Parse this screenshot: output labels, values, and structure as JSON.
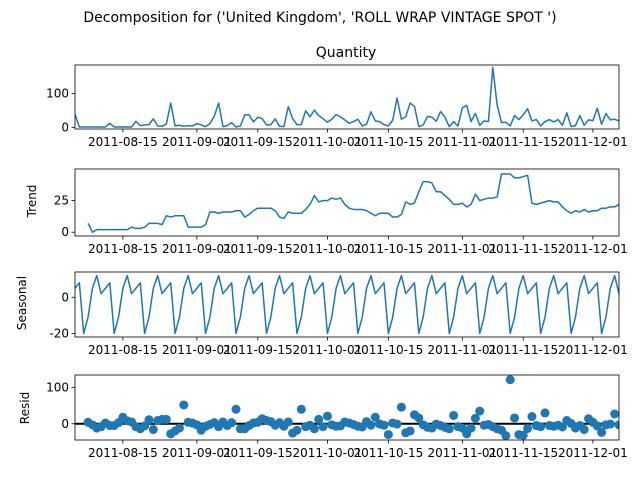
{
  "figure": {
    "suptitle": "Decomposition for ('United Kingdom', 'ROLL WRAP VINTAGE SPOT ')"
  },
  "colors": {
    "line": "#1f77b4",
    "marker": "#1f77b4",
    "zero_line": "#000000"
  },
  "chart_data": [
    {
      "type": "line",
      "title": "Quantity",
      "ylabel": "",
      "x_range": [
        "2011-08-04",
        "2011-12-07"
      ],
      "ylim": [
        -5,
        185
      ],
      "yticks": [
        0,
        100
      ],
      "xtick_labels": [
        "2011-08-15",
        "2011-09-01",
        "2011-09-15",
        "2011-10-01",
        "2011-10-15",
        "2011-11-01",
        "2011-11-15",
        "2011-12-01"
      ],
      "start_date": "2011-08-04",
      "series": [
        {
          "values": [
            38,
            1,
            1,
            1,
            1,
            1,
            1,
            1,
            12,
            1,
            1,
            1,
            1,
            1,
            18,
            5,
            7,
            8,
            25,
            4,
            3,
            10,
            72,
            4,
            6,
            3,
            5,
            4,
            11,
            7,
            2,
            11,
            33,
            72,
            2,
            5,
            14,
            1,
            4,
            37,
            37,
            16,
            30,
            26,
            7,
            8,
            25,
            3,
            2,
            61,
            26,
            8,
            8,
            49,
            31,
            51,
            35,
            26,
            15,
            24,
            38,
            31,
            22,
            12,
            17,
            24,
            4,
            9,
            46,
            19,
            17,
            8,
            4,
            21,
            87,
            24,
            31,
            72,
            62,
            2,
            7,
            32,
            30,
            18,
            47,
            30,
            2,
            17,
            4,
            58,
            65,
            17,
            41,
            6,
            19,
            17,
            178,
            66,
            14,
            15,
            4,
            35,
            23,
            37,
            55,
            19,
            23,
            4,
            17,
            23,
            16,
            23,
            6,
            43,
            2,
            5,
            35,
            6,
            22,
            20,
            57,
            9,
            41,
            22,
            24,
            19,
            54
          ]
        }
      ]
    },
    {
      "type": "line",
      "title": "",
      "ylabel": "Trend",
      "x_range": [
        "2011-08-04",
        "2011-12-07"
      ],
      "ylim": [
        -3,
        50
      ],
      "yticks": [
        0,
        25
      ],
      "xtick_labels": [
        "2011-08-15",
        "2011-09-01",
        "2011-09-15",
        "2011-10-01",
        "2011-10-15",
        "2011-11-01",
        "2011-11-15",
        "2011-12-01"
      ],
      "start_date": "2011-08-04",
      "first_index": 3,
      "series": [
        {
          "values": [
            7,
            0,
            2,
            2,
            2,
            2,
            2,
            2,
            2,
            2,
            4,
            3,
            3,
            4,
            7,
            7,
            7,
            6,
            13,
            12,
            13,
            13,
            13,
            4,
            4,
            4,
            4,
            6,
            16,
            16,
            15,
            16,
            16,
            16,
            17,
            17,
            12,
            14,
            17,
            19,
            19,
            19,
            19,
            17,
            12,
            11,
            16,
            15,
            15,
            15,
            18,
            22,
            29,
            24,
            25,
            25,
            27,
            26,
            27,
            22,
            19,
            18,
            18,
            18,
            17,
            15,
            13,
            15,
            15,
            15,
            12,
            12,
            14,
            24,
            22,
            23,
            32,
            40,
            40,
            39,
            32,
            32,
            29,
            26,
            22,
            22,
            23,
            20,
            22,
            30,
            25,
            26,
            27,
            27,
            28,
            46,
            46,
            46,
            43,
            43,
            44,
            45,
            23,
            22,
            23,
            24,
            25,
            24,
            24,
            20,
            17,
            15,
            17,
            16,
            18,
            16,
            17,
            17,
            19,
            19,
            20,
            20,
            22,
            22,
            22,
            21
          ]
        }
      ]
    },
    {
      "type": "line",
      "title": "",
      "ylabel": "Seasonal",
      "x_range": [
        "2011-08-04",
        "2011-12-07"
      ],
      "ylim": [
        -22,
        14
      ],
      "yticks": [
        -20,
        0
      ],
      "xtick_labels": [
        "2011-08-15",
        "2011-09-01",
        "2011-09-15",
        "2011-10-01",
        "2011-10-15",
        "2011-11-01",
        "2011-11-15",
        "2011-12-01"
      ],
      "start_date": "2011-08-04",
      "period": 7,
      "pattern": [
        5,
        8,
        -20,
        -11,
        5,
        12,
        2
      ],
      "n": 127
    },
    {
      "type": "scatter",
      "title": "",
      "ylabel": "Resid",
      "x_range": [
        "2011-08-04",
        "2011-12-07"
      ],
      "ylim": [
        -45,
        135
      ],
      "yticks": [
        0,
        100
      ],
      "xtick_labels": [
        "2011-08-15",
        "2011-09-01",
        "2011-09-15",
        "2011-10-01",
        "2011-10-15",
        "2011-11-01",
        "2011-11-15",
        "2011-12-01"
      ],
      "start_date": "2011-08-04",
      "first_index": 3,
      "series": [
        {
          "values": [
            4,
            -3,
            -12,
            -8,
            2,
            -5,
            -5,
            3,
            18,
            8,
            5,
            -8,
            -14,
            -6,
            11,
            -16,
            9,
            12,
            12,
            -28,
            -20,
            -12,
            52,
            4,
            2,
            -3,
            -18,
            -7,
            -2,
            3,
            -8,
            5,
            -5,
            3,
            40,
            -14,
            -14,
            -5,
            2,
            4,
            14,
            9,
            6,
            -4,
            3,
            -7,
            5,
            -26,
            -18,
            40,
            -8,
            -4,
            -14,
            12,
            -8,
            21,
            -3,
            -7,
            -6,
            5,
            2,
            -2,
            -7,
            -9,
            6,
            -4,
            18,
            -1,
            -4,
            -30,
            2,
            -1,
            46,
            -25,
            -20,
            25,
            16,
            -3,
            -10,
            -12,
            -1,
            -5,
            -10,
            -14,
            23,
            -8,
            -12,
            -28,
            -12,
            15,
            35,
            -4,
            -2,
            -8,
            -14,
            -18,
            -33,
            122,
            16,
            -30,
            -32,
            -13,
            20,
            -5,
            -8,
            30,
            -5,
            -7,
            -4,
            -9,
            9,
            1,
            -12,
            -5,
            -16,
            14,
            4,
            -6,
            -24,
            -3,
            -1,
            27,
            -3,
            -5,
            0,
            -3,
            -16
          ]
        }
      ]
    }
  ]
}
